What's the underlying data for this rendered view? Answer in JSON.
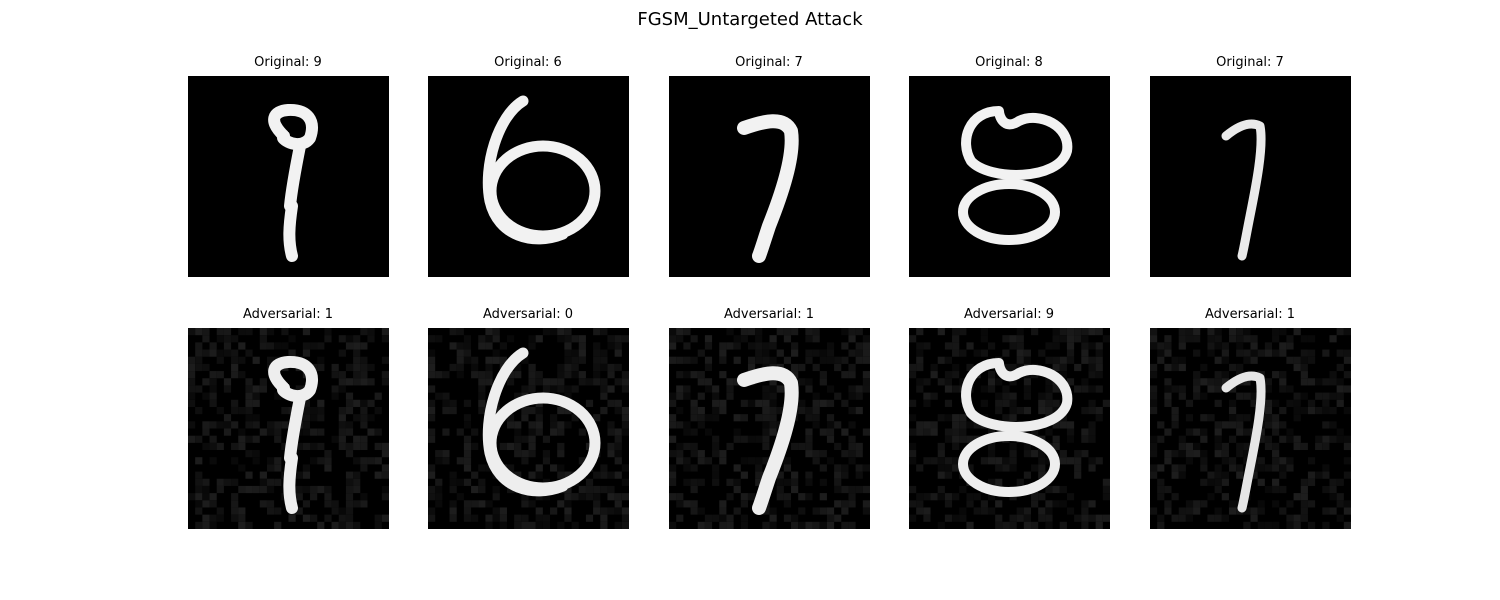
{
  "title": "FGSM_Untargeted Attack",
  "chart_data": {
    "type": "image-grid",
    "title": "FGSM_Untargeted Attack",
    "rows": [
      {
        "row": "original",
        "panels": [
          {
            "label": "Original: 9",
            "digit": "9"
          },
          {
            "label": "Original: 6",
            "digit": "6"
          },
          {
            "label": "Original: 7",
            "digit": "7"
          },
          {
            "label": "Original: 8",
            "digit": "8"
          },
          {
            "label": "Original: 7",
            "digit": "7"
          }
        ]
      },
      {
        "row": "adversarial",
        "panels": [
          {
            "label": "Adversarial: 1",
            "digit": "9"
          },
          {
            "label": "Adversarial: 0",
            "digit": "6"
          },
          {
            "label": "Adversarial: 1",
            "digit": "7"
          },
          {
            "label": "Adversarial: 9",
            "digit": "8"
          },
          {
            "label": "Adversarial: 1",
            "digit": "7"
          }
        ]
      }
    ],
    "colormap": "gray",
    "axes": "off"
  }
}
